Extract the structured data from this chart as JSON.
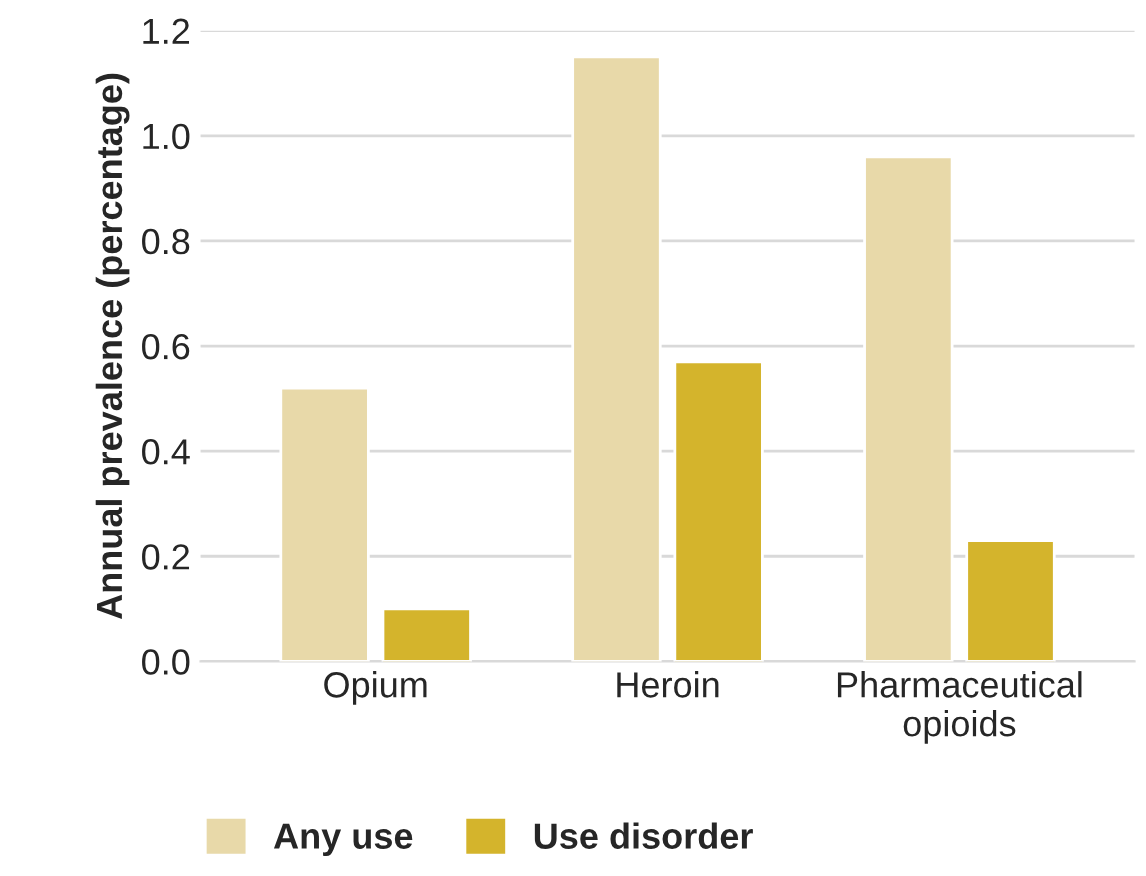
{
  "chart_data": {
    "type": "bar",
    "ylabel": "Annual prevalence (percentage)",
    "categories": [
      "Opium",
      "Heroin",
      "Pharmaceutical\nopioids"
    ],
    "series": [
      {
        "name": "Any use",
        "color": "#e8d9a9",
        "values": [
          0.52,
          1.15,
          0.96
        ]
      },
      {
        "name": "Use disorder",
        "color": "#d4b42c",
        "values": [
          0.1,
          0.57,
          0.23
        ]
      }
    ],
    "ylim": [
      0,
      1.2
    ],
    "yticks": [
      {
        "value": 0,
        "label": "0.0"
      },
      {
        "value": 0.2,
        "label": "0.2"
      },
      {
        "value": 0.4,
        "label": "0.4"
      },
      {
        "value": 0.6,
        "label": "0.6"
      },
      {
        "value": 0.8,
        "label": "0.8"
      },
      {
        "value": 1.0,
        "label": "1.0"
      },
      {
        "value": 1.2,
        "label": "1.2"
      }
    ],
    "grid": "y",
    "legend": "bottom"
  }
}
